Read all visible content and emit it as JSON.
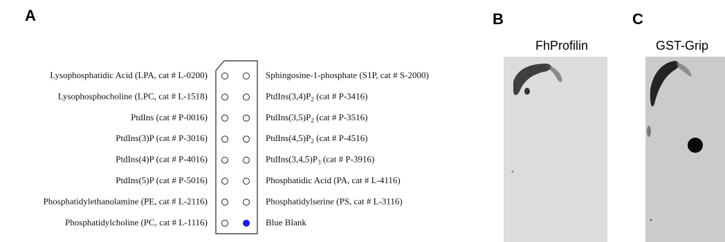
{
  "panels": {
    "a": "A",
    "b": "B",
    "c": "C"
  },
  "left_labels": [
    "Lysophosphatidic Acid (LPA, cat # L-0200)",
    "Lysophosphocholine (LPC, cat # L-1518)",
    "PtdIns (cat # P-0016)",
    "PtdIns(3)P (cat # P-3016)",
    "PtdIns(4)P (cat # P-4016)",
    "PtdIns(5)P (cat # P-5016)",
    "Phosphatidylethanolamine (PE, cat # L-2116)",
    "Phosphatidylcholine (PC, cat # L-1116)"
  ],
  "right_labels": [
    [
      "Sphingosine-1-phosphate (S1P, cat # S-2000)"
    ],
    [
      "PtdIns(3,4)P",
      "2",
      " (cat # P-3416)"
    ],
    [
      "PtdIns(3,5)P",
      "2",
      " (cat # P-3516)"
    ],
    [
      "PtdIns(4,5)P",
      "2",
      " (cat # P-4516)"
    ],
    [
      "PtdIns(3,4,5)P",
      "3",
      " (cat # P-3916)"
    ],
    [
      "Phosphatidic Acid (PA, cat # L-4116)"
    ],
    [
      "Phosphatidylserine (PS, cat # L-3116)"
    ],
    [
      "Blue Blank"
    ]
  ],
  "blots": {
    "b_title": "FhProfilin",
    "c_title": "GST-Grip"
  }
}
